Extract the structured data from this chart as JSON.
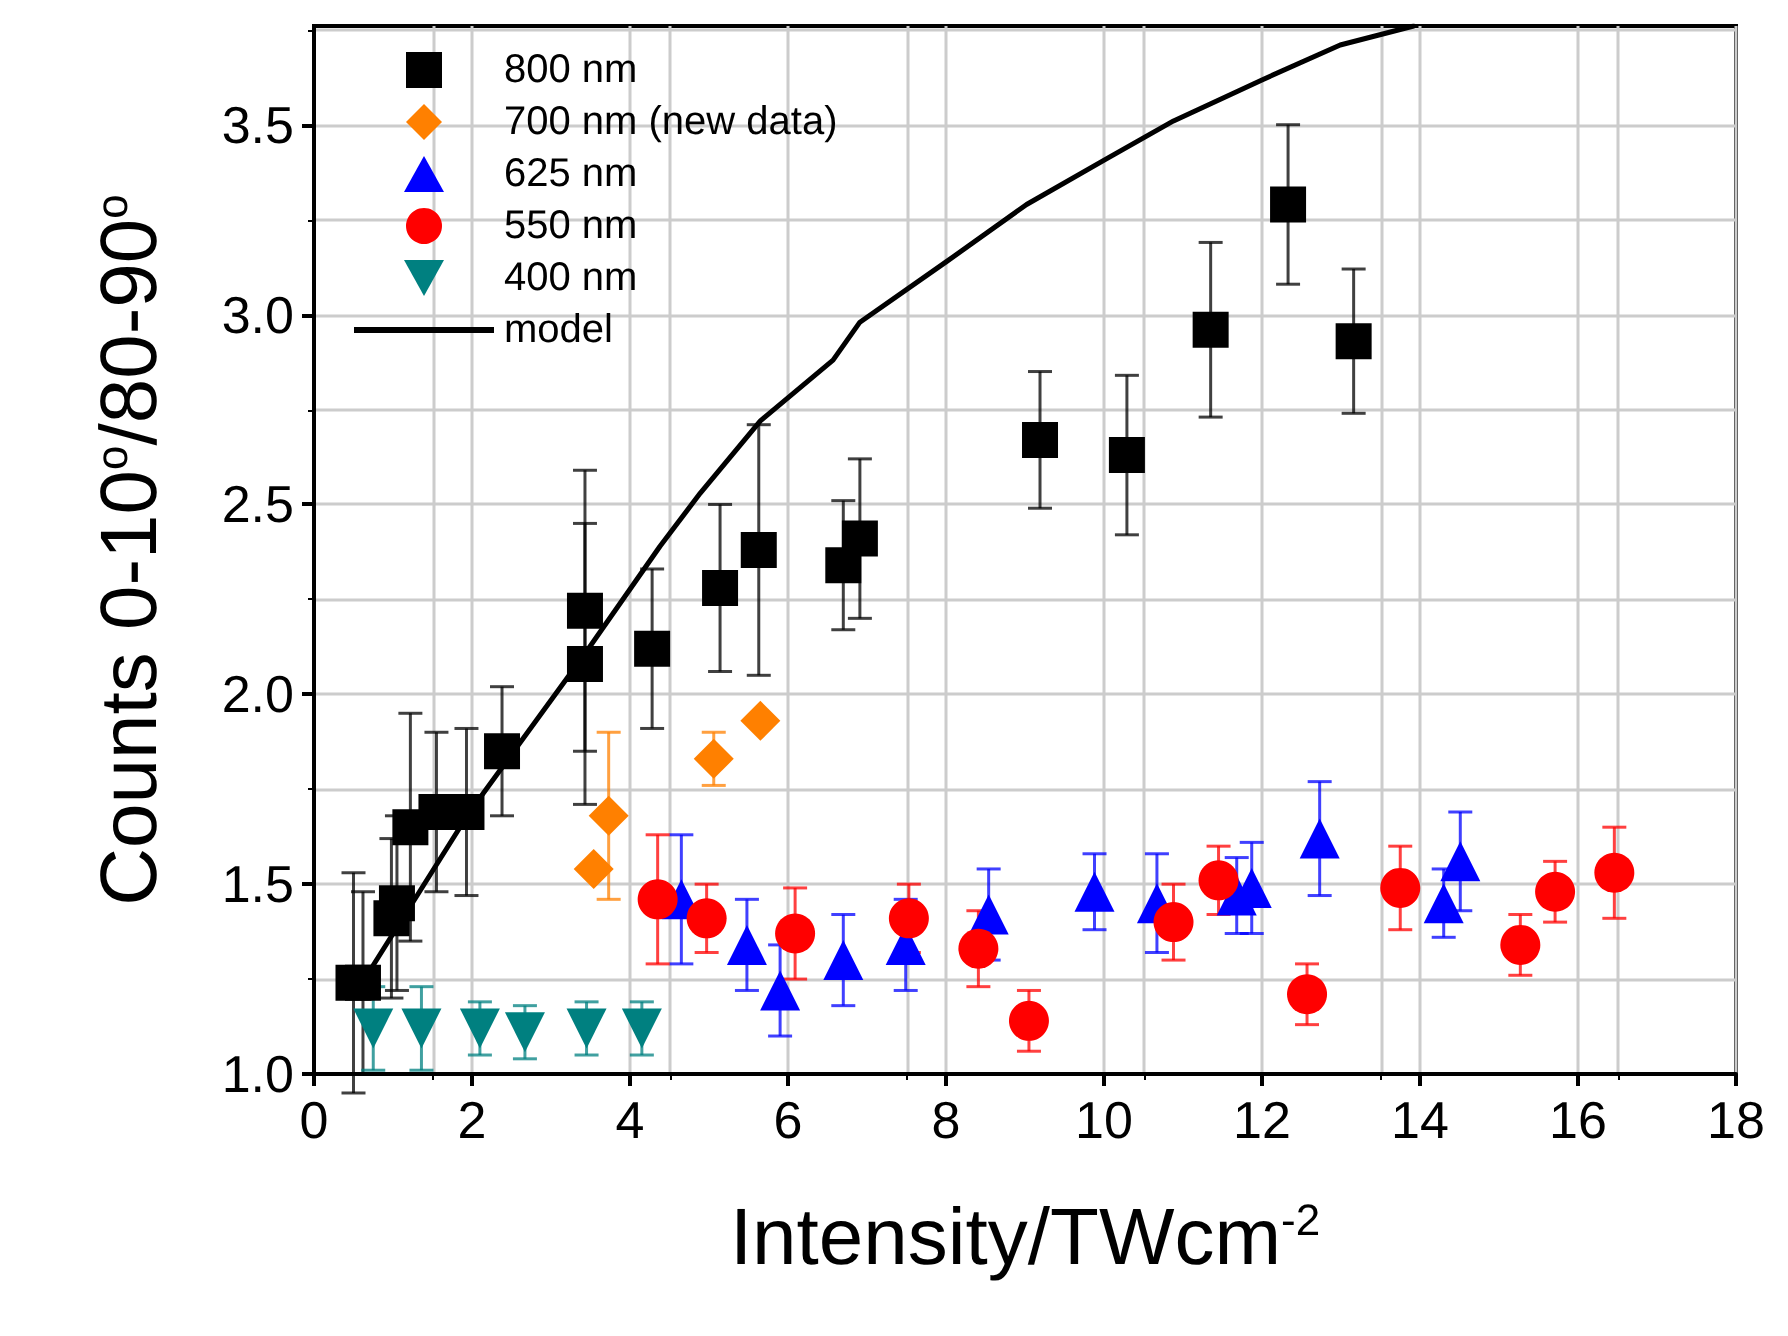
{
  "chart_data": {
    "type": "scatter",
    "xlabel": "Intensity/TWcm$^{-2}$",
    "ylabel": "Counts 0-10$^{o}$/80-90$^{o}$",
    "xlim": [
      0,
      18
    ],
    "xticks": [
      0,
      2,
      4,
      6,
      8,
      10,
      12,
      14,
      16,
      18
    ],
    "ylim": [
      1.0,
      3.76
    ],
    "yticks": [
      {
        "value": 1.0,
        "label": "1.0"
      },
      {
        "value": 1.5,
        "label": "1.5"
      },
      {
        "value": 2.0,
        "label": "2.0"
      },
      {
        "value": 2.5,
        "label": "2.5"
      },
      {
        "value": 3.0,
        "label": "3.0"
      },
      {
        "value": 3.5,
        "label": "3.5"
      }
    ],
    "grid": true,
    "legend": "top left",
    "series": [
      {
        "name": "800 nm",
        "color": "#000000",
        "marker": "square",
        "x": [
          0.5,
          0.62,
          0.98,
          1.05,
          1.22,
          1.55,
          1.93,
          2.38,
          3.43,
          3.43,
          4.28,
          5.14,
          5.63,
          6.7,
          6.91,
          9.19,
          10.29,
          11.35,
          12.33,
          13.16
        ],
        "values": [
          1.24,
          1.24,
          1.41,
          1.45,
          1.65,
          1.69,
          1.69,
          1.85,
          2.08,
          2.22,
          2.12,
          2.28,
          2.38,
          2.34,
          2.41,
          2.67,
          2.63,
          2.96,
          3.29,
          2.93
        ],
        "errors": [
          0.29,
          0.24,
          0.21,
          0.23,
          0.3,
          0.21,
          0.22,
          0.17,
          0.37,
          0.37,
          0.21,
          0.22,
          0.33,
          0.17,
          0.21,
          0.18,
          0.21,
          0.23,
          0.21,
          0.19
        ]
      },
      {
        "name": "700 nm (new data)",
        "color": "#ff8000",
        "marker": "diamond",
        "x": [
          3.54,
          3.73,
          5.06,
          5.65
        ],
        "values": [
          1.54,
          1.68,
          1.83,
          1.93
        ],
        "errors": [
          null,
          0.22,
          0.07,
          null
        ]
      },
      {
        "name": "625 nm",
        "color": "#0000ff",
        "marker": "triangle",
        "x": [
          4.65,
          5.48,
          5.9,
          6.7,
          7.49,
          8.54,
          9.88,
          10.67,
          11.68,
          11.87,
          12.73,
          14.3,
          14.51
        ],
        "values": [
          1.46,
          1.34,
          1.22,
          1.3,
          1.34,
          1.42,
          1.48,
          1.45,
          1.47,
          1.49,
          1.62,
          1.45,
          1.56
        ],
        "errors": [
          0.17,
          0.12,
          0.12,
          0.12,
          0.12,
          0.12,
          0.1,
          0.13,
          0.1,
          0.12,
          0.15,
          0.09,
          0.13
        ]
      },
      {
        "name": "550 nm",
        "color": "#ff0000",
        "marker": "circle",
        "x": [
          4.35,
          4.97,
          6.09,
          7.53,
          8.41,
          9.05,
          10.88,
          11.45,
          12.57,
          13.75,
          15.27,
          15.71,
          16.46
        ],
        "values": [
          1.46,
          1.41,
          1.37,
          1.41,
          1.33,
          1.14,
          1.4,
          1.51,
          1.21,
          1.49,
          1.34,
          1.48,
          1.53
        ],
        "errors": [
          0.17,
          0.09,
          0.12,
          0.09,
          0.1,
          0.08,
          0.1,
          0.09,
          0.08,
          0.11,
          0.08,
          0.08,
          0.12
        ]
      },
      {
        "name": "400 nm",
        "color": "#008080",
        "marker": "triangle-down",
        "x": [
          0.75,
          1.36,
          2.1,
          2.67,
          3.45,
          4.15
        ],
        "values": [
          1.12,
          1.12,
          1.12,
          1.11,
          1.12,
          1.12
        ],
        "errors": [
          0.11,
          0.11,
          0.07,
          0.07,
          0.07,
          0.07
        ]
      },
      {
        "name": "model",
        "type": "line",
        "color": "#000000",
        "marker": "none",
        "line_style": "solid",
        "x": [
          0.6,
          0.67,
          1.97,
          3.44,
          4.38,
          4.89,
          5.65,
          6.57,
          6.91,
          8.01,
          9.02,
          10.03,
          10.88,
          12.02,
          12.99,
          13.92
        ],
        "values": [
          1.2,
          1.26,
          1.69,
          2.11,
          2.39,
          2.53,
          2.72,
          2.88,
          2.98,
          3.14,
          3.29,
          3.41,
          3.51,
          3.62,
          3.71,
          3.76
        ]
      }
    ]
  }
}
